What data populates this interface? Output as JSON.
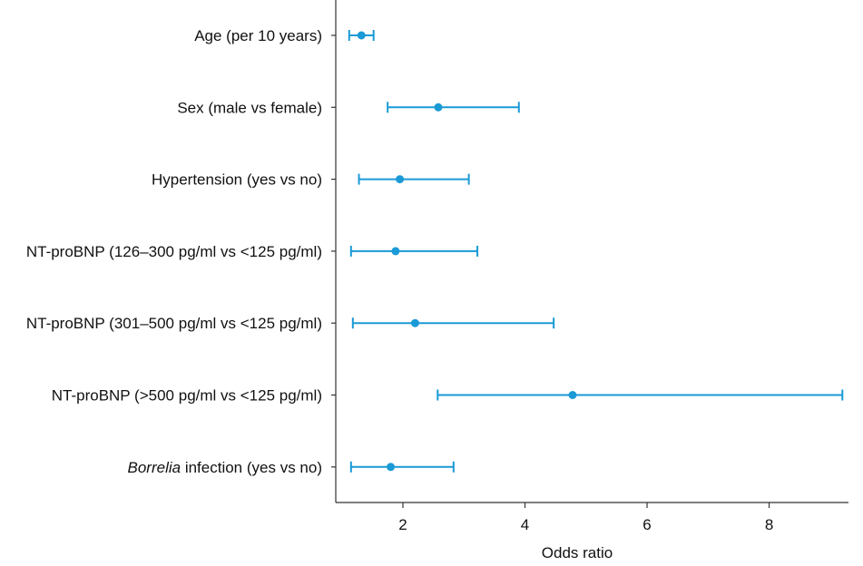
{
  "chart_data": {
    "type": "forest",
    "title": "",
    "xlabel": "Odds ratio",
    "ylabel": "",
    "xlim": [
      0.9,
      9.3
    ],
    "xticks": [
      2,
      4,
      6,
      8
    ],
    "grid": false,
    "legend": "none",
    "marker_color": "#1a9ad6",
    "categories": [
      {
        "label_italic": "",
        "label_text": "Age (per 10 years)",
        "or": 1.32,
        "lo": 1.12,
        "hi": 1.52
      },
      {
        "label_italic": "",
        "label_text": "Sex (male vs female)",
        "or": 2.58,
        "lo": 1.75,
        "hi": 3.9
      },
      {
        "label_italic": "",
        "label_text": "Hypertension (yes vs no)",
        "or": 1.95,
        "lo": 1.28,
        "hi": 3.08
      },
      {
        "label_italic": "",
        "label_text": "NT-proBNP (126–300 pg/ml vs <125 pg/ml)",
        "or": 1.88,
        "lo": 1.15,
        "hi": 3.22
      },
      {
        "label_italic": "",
        "label_text": "NT-proBNP (301–500 pg/ml vs <125 pg/ml)",
        "or": 2.2,
        "lo": 1.18,
        "hi": 4.47
      },
      {
        "label_italic": "",
        "label_text": "NT-proBNP (>500 pg/ml vs <125 pg/ml)",
        "or": 4.78,
        "lo": 2.57,
        "hi": 9.2
      },
      {
        "label_italic": "Borrelia",
        "label_text": " infection (yes vs no)",
        "or": 1.8,
        "lo": 1.15,
        "hi": 2.83
      }
    ]
  }
}
